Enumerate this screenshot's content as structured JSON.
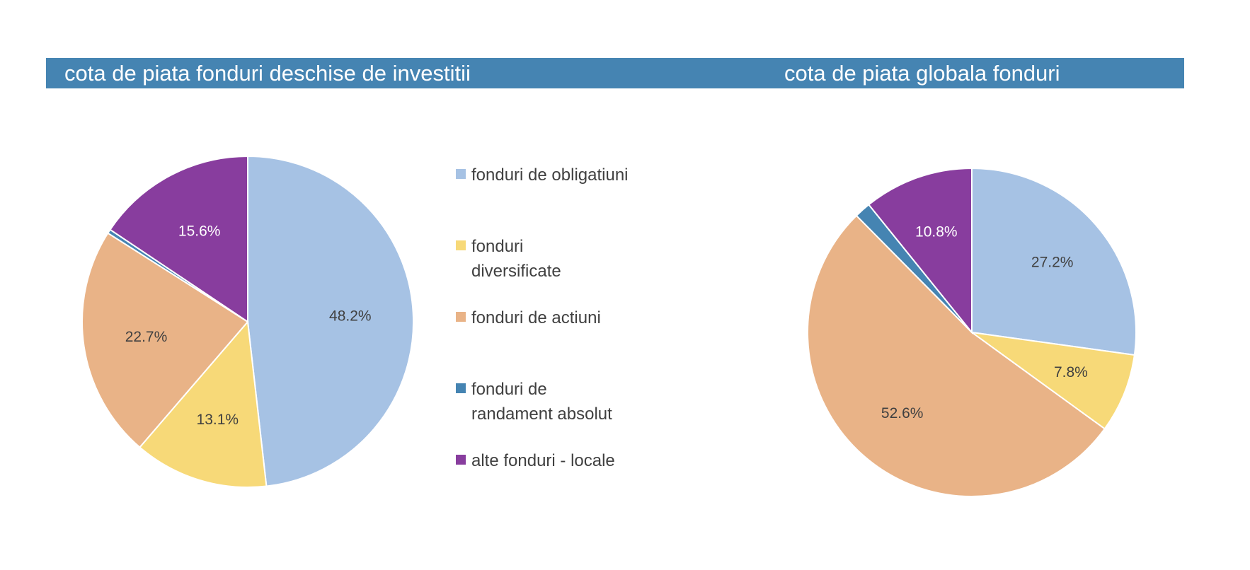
{
  "chart_data": [
    {
      "type": "pie",
      "title": "cota de piata fonduri deschise de investitii",
      "categories": [
        "fonduri de obligatiuni",
        "fonduri diversificate",
        "fonduri de actiuni",
        "fonduri de randament absolut",
        "alte fonduri - locale"
      ],
      "values": [
        48.2,
        13.1,
        22.7,
        0.4,
        15.6
      ],
      "labels": [
        "48.2%",
        "13.1%",
        "22.7%",
        "",
        "15.6%"
      ],
      "colors": [
        "#A6C2E4",
        "#F7D978",
        "#E9B387",
        "#4584B2",
        "#883D9E"
      ],
      "legend_position": "right"
    },
    {
      "type": "pie",
      "title": "cota de piata globala fonduri",
      "categories": [
        "fonduri de obligatiuni",
        "fonduri diversificate",
        "fonduri de actiuni",
        "fonduri de randament absolut",
        "alte fonduri - locale"
      ],
      "values": [
        27.2,
        7.8,
        52.6,
        1.6,
        10.8
      ],
      "labels": [
        "27.2%",
        "7.8%",
        "52.6%",
        "",
        "10.8%"
      ],
      "colors": [
        "#A6C2E4",
        "#F7D978",
        "#E9B387",
        "#4584B2",
        "#883D9E"
      ]
    }
  ],
  "legend": {
    "items": [
      {
        "label": "fonduri de obligatiuni",
        "color": "#A6C2E4"
      },
      {
        "label": "fonduri diversificate",
        "color": "#F7D978"
      },
      {
        "label": "fonduri de actiuni",
        "color": "#E9B387"
      },
      {
        "label": "fonduri de randament absolut",
        "color": "#4584B2"
      },
      {
        "label": "alte fonduri - locale",
        "color": "#883D9E"
      }
    ]
  },
  "colors": {
    "header": "#4584B2",
    "label_light": "#FFFFFF",
    "label_dark": "#404040"
  }
}
